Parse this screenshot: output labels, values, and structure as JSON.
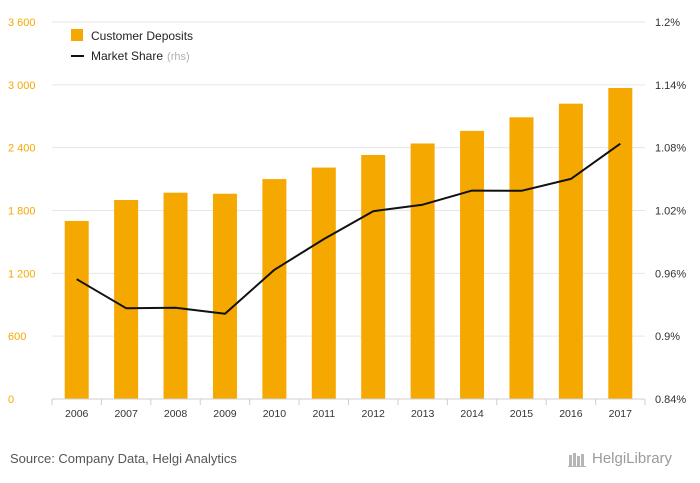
{
  "chart_data": {
    "type": "bar",
    "categories": [
      "2006",
      "2007",
      "2008",
      "2009",
      "2010",
      "2011",
      "2012",
      "2013",
      "2014",
      "2015",
      "2016",
      "2017"
    ],
    "series": [
      {
        "name": "Customer Deposits",
        "type": "bar",
        "axis": "left",
        "color": "#f5a800",
        "values": [
          1700,
          1900,
          1970,
          1960,
          2100,
          2210,
          2330,
          2440,
          2560,
          2690,
          2820,
          2970
        ]
      },
      {
        "name": "Market Share",
        "note": "(rhs)",
        "type": "line",
        "axis": "right",
        "color": "#111111",
        "values": [
          0.9544,
          0.9267,
          0.9271,
          0.9215,
          0.9634,
          0.9927,
          1.0193,
          1.0255,
          1.039,
          1.0388,
          1.0502,
          1.0838
        ]
      }
    ],
    "y_left": {
      "range": [
        0,
        3600
      ],
      "ticks": [
        "0",
        "600",
        "1 200",
        "1 800",
        "2 400",
        "3 000",
        "3 600"
      ]
    },
    "y_right": {
      "range": [
        0.84,
        1.2
      ],
      "ticks": [
        "0.84%",
        "0.9%",
        "0.96%",
        "1.02%",
        "1.08%",
        "1.14%",
        "1.2%"
      ]
    },
    "grid": true,
    "legend_position": "top-left"
  },
  "footer": {
    "source": "Source: Company Data, Helgi Analytics",
    "brand": "HelgiLibrary"
  }
}
